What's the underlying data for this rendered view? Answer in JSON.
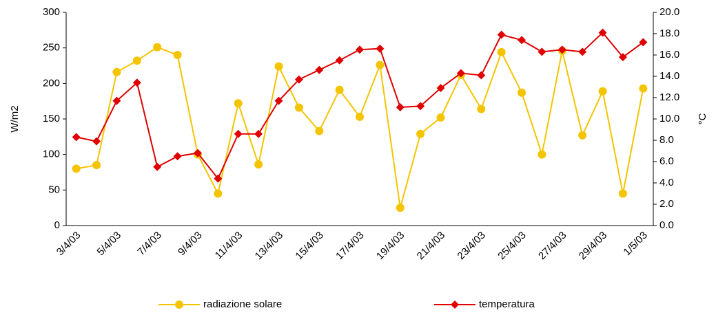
{
  "chart_data": {
    "type": "line",
    "categories": [
      "3/4/03",
      null,
      "5/4/03",
      null,
      "7/4/03",
      null,
      "9/4/03",
      null,
      "11/4/03",
      null,
      "13/4/03",
      null,
      "15/4/03",
      null,
      "17/4/03",
      null,
      "19/4/03",
      null,
      "21/4/03",
      null,
      "23/4/03",
      null,
      "25/4/03",
      null,
      "27/4/03",
      null,
      "29/4/03",
      null,
      "1/5/03"
    ],
    "ylabel": "W/m2",
    "y2label": "°C",
    "ylim": [
      0,
      300
    ],
    "yticks": [
      0,
      50,
      100,
      150,
      200,
      250,
      300
    ],
    "y2lim": [
      0,
      20
    ],
    "y2ticks": [
      {
        "value": 0,
        "label": "0.0"
      },
      {
        "value": 2,
        "label": "2.0"
      },
      {
        "value": 4,
        "label": "4.0"
      },
      {
        "value": 6,
        "label": "6.0"
      },
      {
        "value": 8,
        "label": "8.0"
      },
      {
        "value": 10,
        "label": "10.0"
      },
      {
        "value": 12,
        "label": "12.0"
      },
      {
        "value": 14,
        "label": "14.0"
      },
      {
        "value": 16,
        "label": "16.0"
      },
      {
        "value": 18,
        "label": "18.0"
      },
      {
        "value": 20,
        "label": "20.0"
      }
    ],
    "grid": false,
    "legend": "bottom",
    "series": [
      {
        "name": "radiazione solare",
        "color": "#f5c400",
        "marker": "circle",
        "values": [
          80,
          85,
          216,
          232,
          251,
          240,
          100,
          45,
          172,
          86,
          224,
          166,
          133,
          191,
          153,
          226,
          25,
          129,
          152,
          212,
          164,
          244,
          187,
          100,
          246,
          127,
          189,
          45,
          193
        ]
      },
      {
        "name": "temperatura",
        "color": "#e00000",
        "marker": "diamond",
        "axis": "y2",
        "values": [
          8.3,
          7.9,
          11.7,
          13.4,
          5.5,
          6.5,
          6.8,
          4.4,
          8.6,
          8.6,
          11.7,
          13.7,
          14.6,
          15.5,
          16.5,
          16.6,
          11.1,
          11.2,
          12.9,
          14.3,
          14.1,
          17.9,
          17.4,
          16.3,
          16.5,
          16.3,
          18.1,
          15.8,
          17.2
        ]
      }
    ]
  }
}
